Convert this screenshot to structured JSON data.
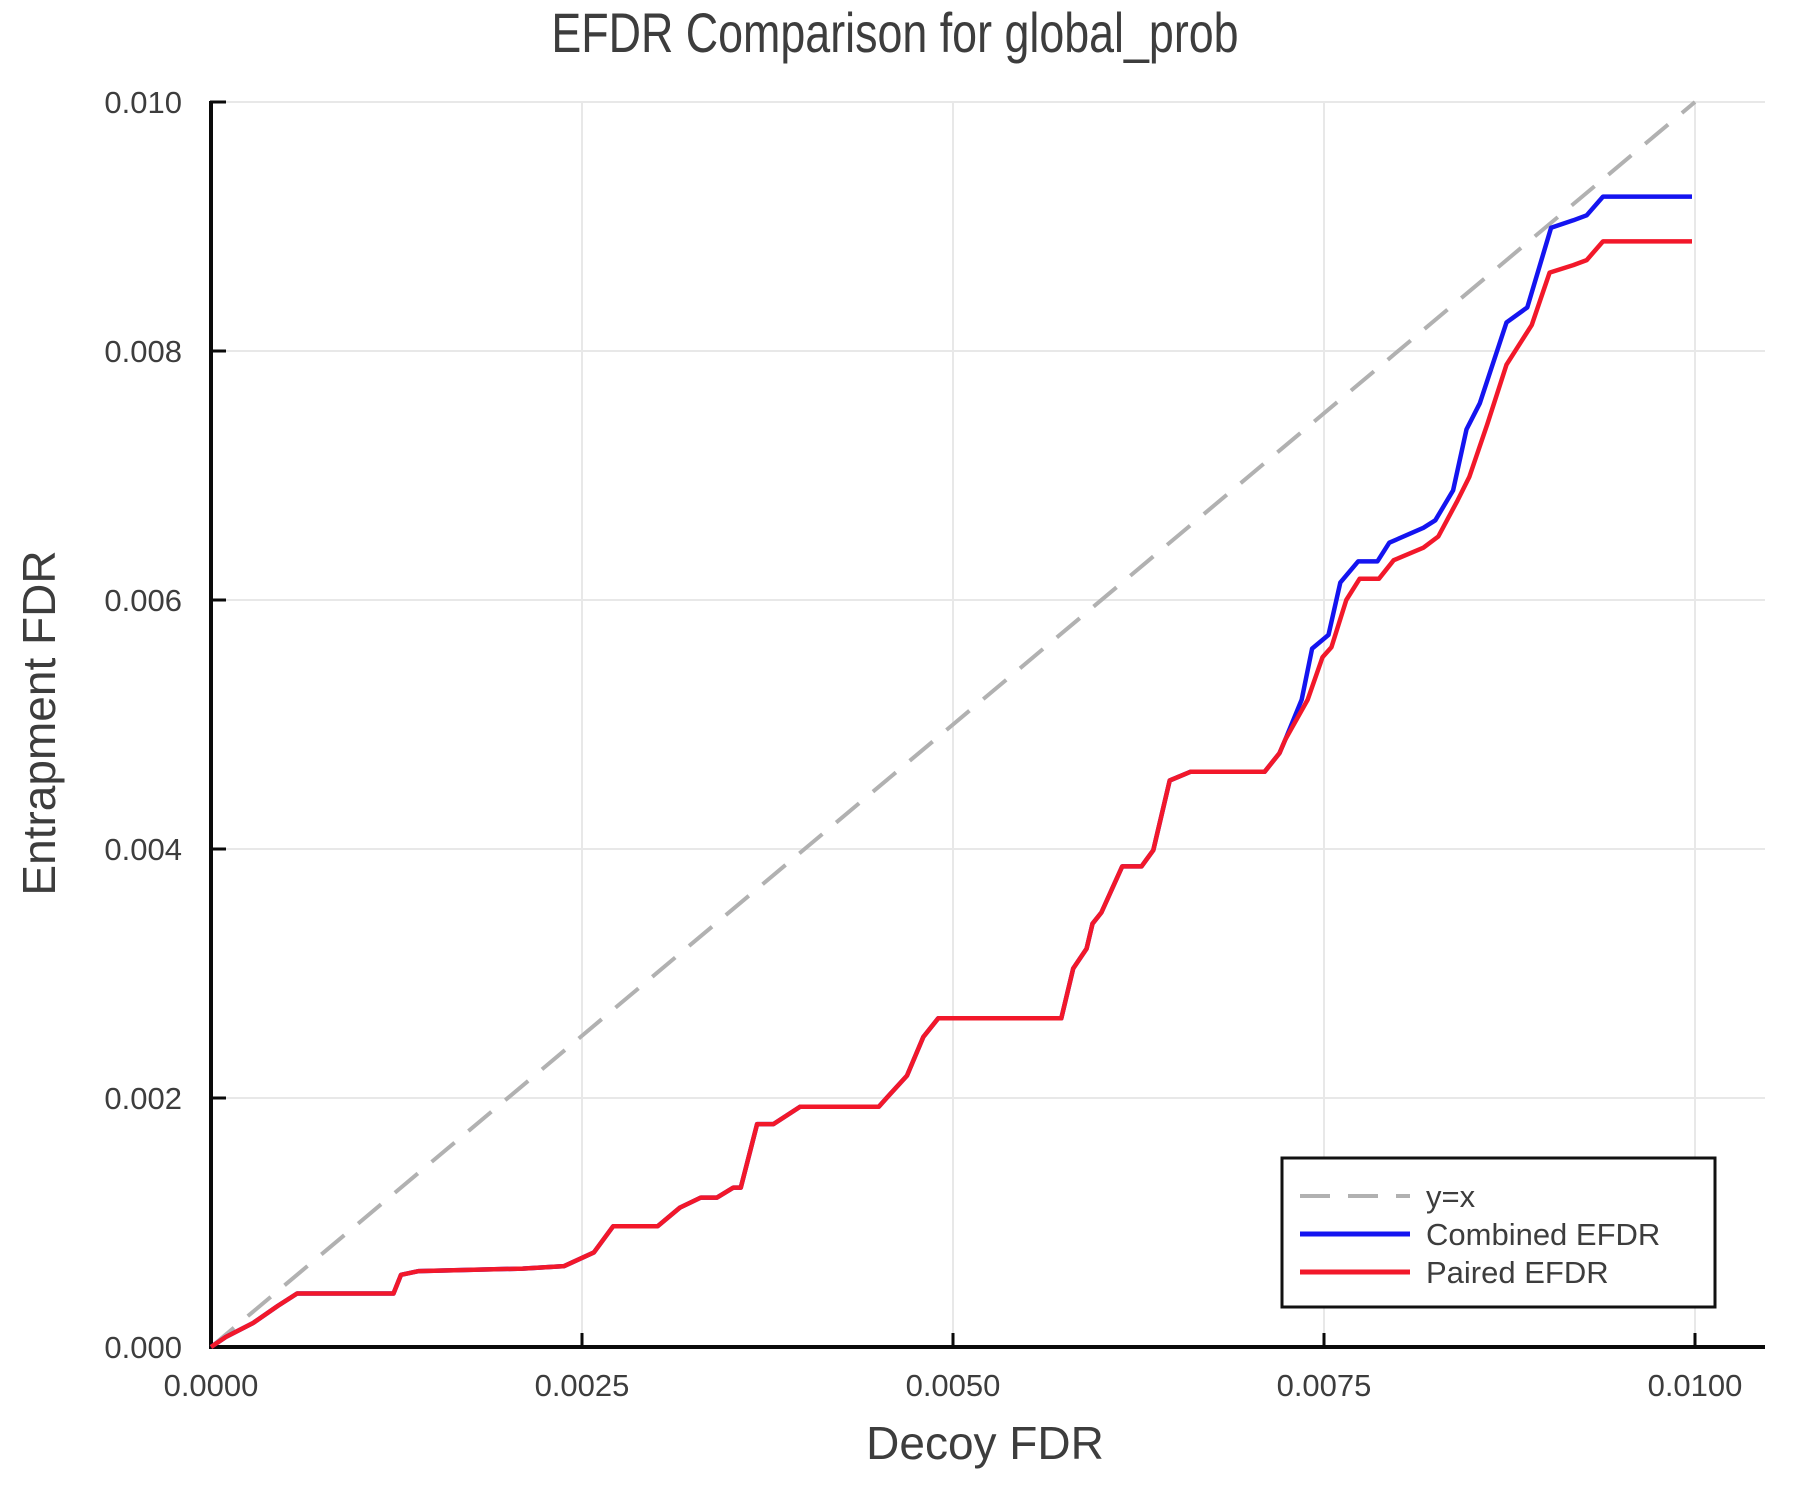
{
  "chart_data": {
    "type": "line",
    "title": "EFDR Comparison for global_prob",
    "xlabel": "Decoy FDR",
    "ylabel": "Entrapment FDR",
    "xlim": [
      0.0,
      0.01047
    ],
    "ylim": [
      0.0,
      0.01
    ],
    "grid": true,
    "legend_position": "bottom-right",
    "x_ticks": [
      {
        "value": 0.0,
        "label": "0.0000"
      },
      {
        "value": 0.0025,
        "label": "0.0025"
      },
      {
        "value": 0.005,
        "label": "0.0050"
      },
      {
        "value": 0.0075,
        "label": "0.0075"
      },
      {
        "value": 0.01,
        "label": "0.0100"
      }
    ],
    "y_ticks": [
      {
        "value": 0.0,
        "label": "0.000"
      },
      {
        "value": 0.002,
        "label": "0.002"
      },
      {
        "value": 0.004,
        "label": "0.004"
      },
      {
        "value": 0.006,
        "label": "0.006"
      },
      {
        "value": 0.008,
        "label": "0.008"
      },
      {
        "value": 0.01,
        "label": "0.010"
      }
    ],
    "identity_line": {
      "label": "y=x",
      "color": "#b1b1b1",
      "style": "dashed",
      "from": [
        0.0,
        0.0
      ],
      "to": [
        0.01,
        0.01
      ]
    },
    "series": [
      {
        "name": "Combined EFDR",
        "color": "#1414f0",
        "points": [
          [
            0.0,
            0.0
          ],
          [
            0.0001,
            8e-05
          ],
          [
            0.00028,
            0.00019
          ],
          [
            0.00045,
            0.00033
          ],
          [
            0.00058,
            0.00043
          ],
          [
            0.00123,
            0.00043
          ],
          [
            0.00128,
            0.00058
          ],
          [
            0.0014,
            0.00061
          ],
          [
            0.0021,
            0.00063
          ],
          [
            0.00238,
            0.00065
          ],
          [
            0.00258,
            0.00076
          ],
          [
            0.00271,
            0.00097
          ],
          [
            0.00301,
            0.00097
          ],
          [
            0.00316,
            0.00112
          ],
          [
            0.0033,
            0.0012
          ],
          [
            0.00341,
            0.0012
          ],
          [
            0.00352,
            0.00128
          ],
          [
            0.00357,
            0.00128
          ],
          [
            0.00368,
            0.00179
          ],
          [
            0.00379,
            0.00179
          ],
          [
            0.00397,
            0.00193
          ],
          [
            0.0045,
            0.00193
          ],
          [
            0.00456,
            0.00201
          ],
          [
            0.00469,
            0.00218
          ],
          [
            0.0048,
            0.00249
          ],
          [
            0.0049,
            0.00264
          ],
          [
            0.00573,
            0.00264
          ],
          [
            0.00581,
            0.00304
          ],
          [
            0.0059,
            0.0032
          ],
          [
            0.00594,
            0.0034
          ],
          [
            0.006,
            0.00349
          ],
          [
            0.00614,
            0.00386
          ],
          [
            0.00627,
            0.00386
          ],
          [
            0.00635,
            0.00399
          ],
          [
            0.00646,
            0.00455
          ],
          [
            0.0066,
            0.00462
          ],
          [
            0.0071,
            0.00462
          ],
          [
            0.0072,
            0.00477
          ],
          [
            0.00724,
            0.00488
          ],
          [
            0.00735,
            0.0052
          ],
          [
            0.00742,
            0.00561
          ],
          [
            0.00753,
            0.00572
          ],
          [
            0.00761,
            0.00614
          ],
          [
            0.00773,
            0.00631
          ],
          [
            0.00786,
            0.00631
          ],
          [
            0.00794,
            0.00646
          ],
          [
            0.00817,
            0.00658
          ],
          [
            0.00825,
            0.00664
          ],
          [
            0.00837,
            0.00688
          ],
          [
            0.00846,
            0.00737
          ],
          [
            0.00855,
            0.00758
          ],
          [
            0.00873,
            0.00823
          ],
          [
            0.00887,
            0.00835
          ],
          [
            0.00903,
            0.00899
          ],
          [
            0.00918,
            0.00905
          ],
          [
            0.00927,
            0.00909
          ],
          [
            0.00938,
            0.00924
          ],
          [
            0.00998,
            0.00924
          ]
        ]
      },
      {
        "name": "Paired EFDR",
        "color": "#f2182a",
        "points": [
          [
            0.0,
            0.0
          ],
          [
            0.0001,
            8e-05
          ],
          [
            0.00028,
            0.00019
          ],
          [
            0.00045,
            0.00033
          ],
          [
            0.00058,
            0.00043
          ],
          [
            0.00123,
            0.00043
          ],
          [
            0.00128,
            0.00058
          ],
          [
            0.0014,
            0.00061
          ],
          [
            0.0021,
            0.00063
          ],
          [
            0.00238,
            0.00065
          ],
          [
            0.00258,
            0.00076
          ],
          [
            0.00271,
            0.00097
          ],
          [
            0.00301,
            0.00097
          ],
          [
            0.00316,
            0.00112
          ],
          [
            0.0033,
            0.0012
          ],
          [
            0.00341,
            0.0012
          ],
          [
            0.00352,
            0.00128
          ],
          [
            0.00357,
            0.00128
          ],
          [
            0.00368,
            0.00179
          ],
          [
            0.00379,
            0.00179
          ],
          [
            0.00397,
            0.00193
          ],
          [
            0.0045,
            0.00193
          ],
          [
            0.00456,
            0.00201
          ],
          [
            0.00469,
            0.00218
          ],
          [
            0.0048,
            0.00249
          ],
          [
            0.0049,
            0.00264
          ],
          [
            0.00573,
            0.00264
          ],
          [
            0.00581,
            0.00304
          ],
          [
            0.0059,
            0.0032
          ],
          [
            0.00594,
            0.0034
          ],
          [
            0.006,
            0.00349
          ],
          [
            0.00614,
            0.00386
          ],
          [
            0.00627,
            0.00386
          ],
          [
            0.00635,
            0.00399
          ],
          [
            0.00646,
            0.00455
          ],
          [
            0.0066,
            0.00462
          ],
          [
            0.0071,
            0.00462
          ],
          [
            0.0072,
            0.00477
          ],
          [
            0.00724,
            0.00488
          ],
          [
            0.00739,
            0.0052
          ],
          [
            0.00749,
            0.00554
          ],
          [
            0.00755,
            0.00562
          ],
          [
            0.00765,
            0.006
          ],
          [
            0.00774,
            0.00617
          ],
          [
            0.00787,
            0.00617
          ],
          [
            0.00797,
            0.00632
          ],
          [
            0.00817,
            0.00642
          ],
          [
            0.00827,
            0.00651
          ],
          [
            0.0084,
            0.0068
          ],
          [
            0.00848,
            0.00699
          ],
          [
            0.0086,
            0.00741
          ],
          [
            0.00873,
            0.00789
          ],
          [
            0.0089,
            0.00821
          ],
          [
            0.00902,
            0.00863
          ],
          [
            0.00918,
            0.00869
          ],
          [
            0.00927,
            0.00873
          ],
          [
            0.00938,
            0.00888
          ],
          [
            0.00998,
            0.00888
          ]
        ]
      }
    ],
    "legend": {
      "entries": [
        {
          "label": "y=x",
          "color": "#b1b1b1",
          "dashed": true
        },
        {
          "label": "Combined EFDR",
          "color": "#1414f0",
          "dashed": false
        },
        {
          "label": "Paired EFDR",
          "color": "#f2182a",
          "dashed": false
        }
      ]
    },
    "colors": {
      "text": "#3d3d3d",
      "axis": "#0a0a0a",
      "gridline": "#e8e8e8",
      "background": "#ffffff"
    }
  }
}
